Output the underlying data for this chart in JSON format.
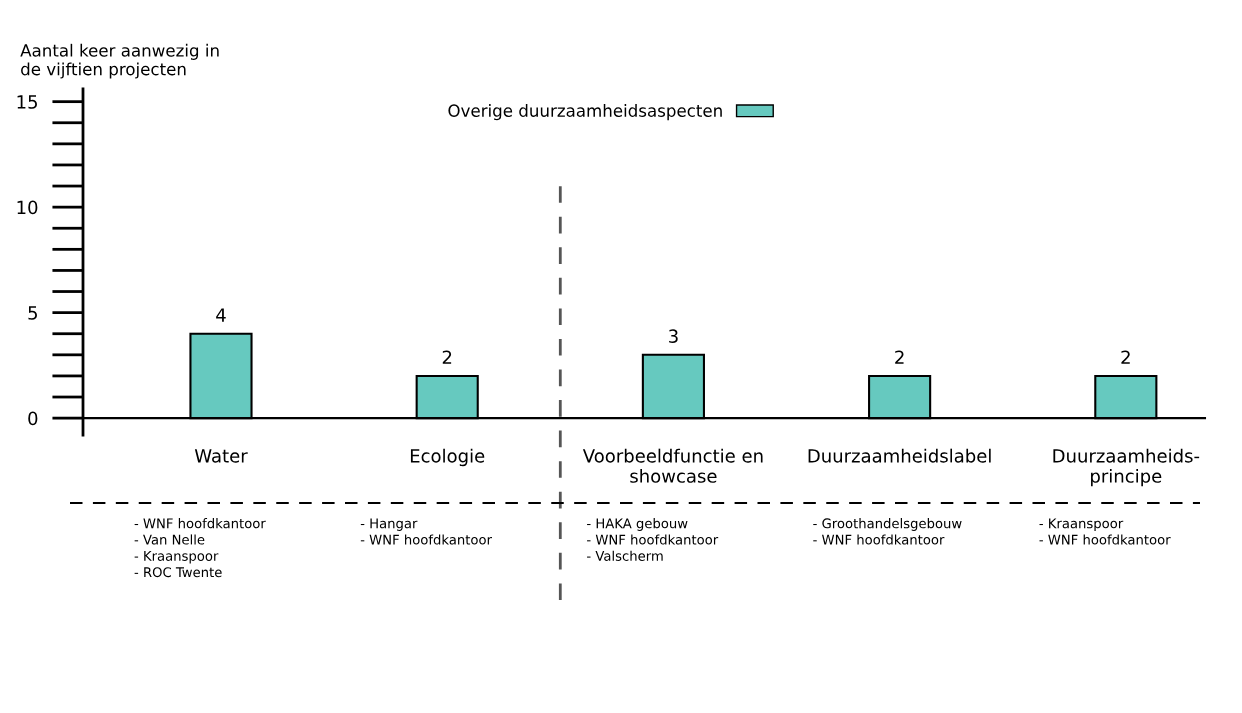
{
  "chart_data": {
    "type": "bar",
    "ylabel": "Aantal keer aanwezig in\nde vijftien projecten",
    "categories": [
      "Water",
      "Ecologie",
      "Voorbeeldfunctie en\nshowcase",
      "Duurzaamheidslabel",
      "Duurzaamheids-\nprincipe"
    ],
    "series": [
      {
        "name": "Overige duurzaamheidsaspecten",
        "color": "#66c9bf",
        "values": [
          4,
          2,
          3,
          2,
          2
        ]
      }
    ],
    "data_labels": true,
    "legend": "top",
    "grid": false,
    "ylim": [
      -0.8,
      15.6
    ],
    "yticks": [
      0,
      5,
      10,
      15
    ],
    "annotations": [
      "- WNF hoofdkantoor\n- Van Nelle\n- Kraanspoor\n- ROC Twente",
      "- Hangar\n- WNF hoofdkantoor",
      "- HAKA gebouw\n- WNF hoofdkantoor\n- Valscherm",
      "- Groothandelsgebouw\n- WNF hoofdkantoor",
      "- Kraanspoor\n- WNF hoofdkantoor"
    ]
  }
}
